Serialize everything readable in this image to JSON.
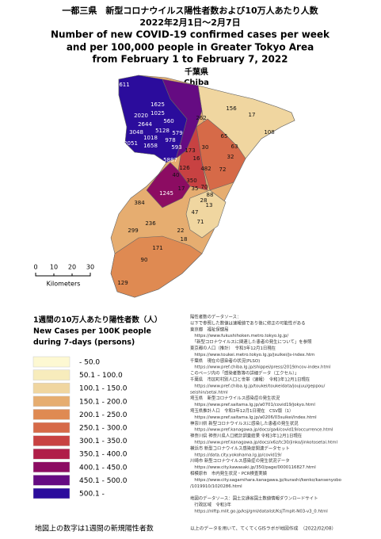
{
  "header": {
    "title_ja": "一都三県　新型コロナウイルス陽性者数および10万人あたり人数",
    "date_ja": "2022年2月1日～2月7日",
    "title_en": [
      "Number of new COVID-19 confirmed cases per week",
      "and per 100,000 people in Greater Tokyo Area",
      "from February 1 to February 7, 2022"
    ]
  },
  "region": {
    "name_ja": "千葉県",
    "name_en": "Chiba"
  },
  "map_labels": [
    611,
    1625,
    1025,
    2020,
    2644,
    560,
    3048,
    5128,
    1018,
    978,
    2051,
    1658,
    579,
    593,
    5887,
    156,
    262,
    17,
    108,
    65,
    63,
    32,
    173,
    30,
    16,
    482,
    350,
    72,
    126,
    40,
    1245,
    17,
    35,
    88,
    70,
    28,
    384,
    47,
    13,
    71,
    236,
    22,
    18,
    299,
    171,
    90,
    129
  ],
  "scale": {
    "ticks": [
      "0",
      "10",
      "20",
      "30"
    ],
    "unit": "Kilometers"
  },
  "legend": {
    "title": [
      "1週間の10万人あたり陽性者数（人）",
      "New Cases per 100K people",
      "during 7-days (persons)"
    ],
    "items": [
      {
        "label": " - 50.0",
        "color": "#fdf8d2"
      },
      {
        "label": "50.1 - 100.0",
        "color": "#f7ecbc"
      },
      {
        "label": "100.1 - 150.0",
        "color": "#f0d6a0"
      },
      {
        "label": "150.1 - 200.0",
        "color": "#e6ad70"
      },
      {
        "label": "200.1 - 250.0",
        "color": "#df8a52"
      },
      {
        "label": "250.1 - 300.0",
        "color": "#d66a48"
      },
      {
        "label": "300.1 - 350.0",
        "color": "#c84242"
      },
      {
        "label": "350.1 - 400.0",
        "color": "#b01e48"
      },
      {
        "label": "400.1 - 450.0",
        "color": "#8c0c62"
      },
      {
        "label": "450.1 - 500.0",
        "color": "#650b82"
      },
      {
        "label": "500.1 -",
        "color": "#2b0c9c"
      }
    ]
  },
  "footnote": "地図上の数字は1週間の新規陽性者数",
  "sources": [
    "陽性者数のデータソース：",
    "以下で参照した数値は速報値であり後に修正の可能性がある",
    "東京都　福祉保健局",
    "　https://www.fukushihoken.metro.tokyo.lg.jp/",
    "　「新型コロナウイルスに関連した患者の発生について」を参照",
    "東京都の人口（推計）　令和3年12月1日現在",
    "　https://www.toukei.metro.tokyo.lg.jp/jsuikei/js-index.htm",
    "千葉県　現在の感染者の状況(PLSO)",
    "　https://www.pref.chiba.lg.jp/shippei/press/2019/ncov-index.html",
    "このページ内の「感染者数等の詳細データ（エクセル）」",
    "千葉県　市区町村別人口と世帯（速報）　令和3年12月1日現在",
    "　https://www.pref.chiba.lg.jp/toukei/toukeidata/joujuu/geppou/",
    "seishin/setai.html",
    "埼玉県　新型コロナウイルス感染症の発生状況",
    "　https://www.pref.saitama.lg.jp/a0701/covid19/jokyo.html",
    "埼玉県推計人口　令和3年12月1日現在　CSV版（1）",
    "　https://www.pref.saitama.lg.jp/a0206/03suikei/index.html",
    "神奈川県 新型コロナウイルスに感染した患者の発生状況",
    "　https://www.pref.kanagawa.jp/docs/ga4/covid19/occurrence.html",
    "神奈川県 神奈川県人口統計調査結果 令和3年12月1日現在",
    "　https://www.pref.kanagawa.jp/docs/x6z/tc30/jinko/jinkotosetai.html",
    "横浜市 新型コロナウイルス感染症関連データセット",
    "　https://data.city.yokohama.lg.jp/covid19/",
    "川崎市 新型コロナウイルス感染症の発生状況データ",
    "　https://www.city.kawasaki.jp/350/page/0000116827.html",
    "相模原市　市内発生状況・PCR検査実績",
    "　https://www.city.sagamihara.kanagawa.jp/kurashi/kenko/kansenyobo",
    "/1019910/1020286.html",
    "",
    "地図のデータソース：国土交通省国土数値情報ダウンロードサイト",
    "　行政区域　令和3年",
    "　https://nlftp.mlit.go.jp/ksj/gml/datalist/KsjTmplt-N03-v3_0.html"
  ],
  "credit": "以上のデータを用いて、てくてくGISラボが地図作成　（2022/02/08）"
}
